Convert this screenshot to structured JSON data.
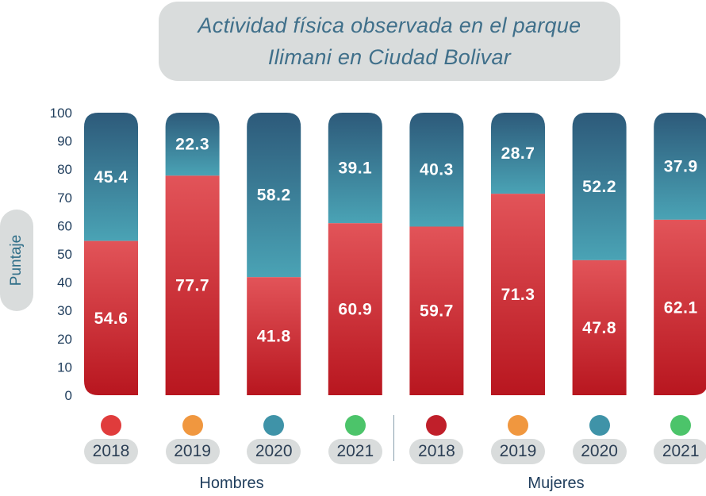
{
  "chart_data": {
    "type": "bar",
    "stacked": true,
    "title_lines": [
      "Actividad física observada en el parque",
      "Ilimani en Ciudad Bolivar"
    ],
    "ylabel": "Puntaje",
    "ylim": [
      0,
      100
    ],
    "yticks": [
      "0",
      "10",
      "20",
      "30",
      "40",
      "50",
      "60",
      "70",
      "80",
      "90",
      "100"
    ],
    "groups": [
      "Hombres",
      "Mujeres"
    ],
    "categories": [
      "2018",
      "2019",
      "2020",
      "2021",
      "2018",
      "2019",
      "2020",
      "2021"
    ],
    "series": [
      {
        "color": "#c0242f",
        "values": [
          54.6,
          77.7,
          41.8,
          60.9,
          59.7,
          71.3,
          47.8,
          62.1
        ]
      },
      {
        "color": "#3f93a8",
        "values": [
          45.4,
          22.3,
          58.2,
          39.1,
          40.3,
          28.7,
          52.2,
          37.9
        ]
      }
    ],
    "legend_dot_colors": [
      "#e03c3c",
      "#f0973f",
      "#3f93a8",
      "#4cc46a",
      "#c01f2a",
      "#f0973f",
      "#3f93a8",
      "#4cc46a"
    ]
  }
}
